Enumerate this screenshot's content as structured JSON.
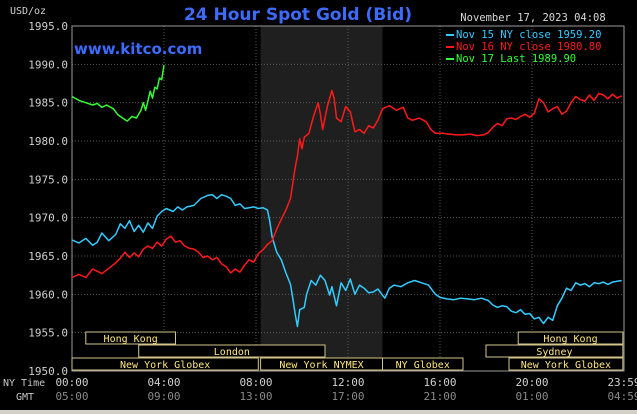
{
  "header": {
    "title": "24 Hour Spot Gold (Bid)",
    "unit": "USD/oz",
    "timestamp": "November 17, 2023 04:08",
    "watermark": "www.kitco.com"
  },
  "legend": [
    {
      "name": "Nov 15 NY close 1959.20",
      "color": "#33ccff"
    },
    {
      "name": "Nov 16 NY close 1980.80",
      "color": "#ff1a1a"
    },
    {
      "name": "Nov 17 Last 1989.90",
      "color": "#33ff33"
    }
  ],
  "time_axis": {
    "ny_label": "NY Time",
    "gmt_label": "GMT",
    "ny_ticks": [
      "00:00",
      "04:00",
      "08:00",
      "12:00",
      "16:00",
      "20:00",
      "23:59"
    ],
    "gmt_ticks": [
      "05:00",
      "09:00",
      "13:00",
      "17:00",
      "21:00",
      "01:00",
      "04:59"
    ]
  },
  "sessions": [
    {
      "name": "Hong Kong",
      "row": 0,
      "start": 0.6,
      "end": 4.5
    },
    {
      "name": "Hong Kong",
      "row": 0,
      "start": 19.4,
      "end": 23.95
    },
    {
      "name": "London",
      "row": 1,
      "start": 2.9,
      "end": 11.0
    },
    {
      "name": "Sydney",
      "row": 1,
      "start": 18.0,
      "end": 23.95
    },
    {
      "name": "New York Globex",
      "row": 2,
      "start": 0.0,
      "end": 8.1
    },
    {
      "name": "New York NYMEX",
      "row": 2,
      "start": 8.2,
      "end": 13.5
    },
    {
      "name": "NY Globex",
      "row": 2,
      "start": 13.5,
      "end": 17.0
    },
    {
      "name": "New York Globex",
      "row": 2,
      "start": 19.0,
      "end": 23.95
    }
  ],
  "chart_data": {
    "type": "line",
    "title": "24 Hour Spot Gold (Bid)",
    "ylabel": "USD/oz",
    "xlabel": "NY Time",
    "ylim": [
      1950,
      1995
    ],
    "yticks": [
      1950,
      1955,
      1960,
      1965,
      1970,
      1975,
      1980,
      1985,
      1990,
      1995
    ],
    "ytick_labels": [
      "1950.0",
      "1955.0",
      "1960.0",
      "1965.0",
      "1970.0",
      "1975.0",
      "1980.0",
      "1985.0",
      "1990.0",
      "1995.0"
    ],
    "xlim": [
      0,
      24
    ],
    "xticks": [
      0,
      4,
      8,
      12,
      16,
      20,
      24
    ],
    "shaded_region": [
      8.2,
      13.5
    ],
    "series": [
      {
        "name": "Nov 15 NY close 1959.20",
        "color": "#33ccff",
        "points": [
          [
            0,
            1967.1
          ],
          [
            0.3,
            1966.7
          ],
          [
            0.6,
            1967.3
          ],
          [
            0.9,
            1966.4
          ],
          [
            1.1,
            1966.8
          ],
          [
            1.3,
            1968.0
          ],
          [
            1.6,
            1967.0
          ],
          [
            1.9,
            1967.8
          ],
          [
            2.1,
            1969.2
          ],
          [
            2.3,
            1968.6
          ],
          [
            2.5,
            1969.6
          ],
          [
            2.7,
            1968.2
          ],
          [
            2.9,
            1969.0
          ],
          [
            3.1,
            1968.1
          ],
          [
            3.3,
            1969.3
          ],
          [
            3.5,
            1968.6
          ],
          [
            3.7,
            1970.2
          ],
          [
            3.9,
            1970.8
          ],
          [
            4.1,
            1971.2
          ],
          [
            4.4,
            1970.8
          ],
          [
            4.6,
            1971.4
          ],
          [
            4.8,
            1971.0
          ],
          [
            5.0,
            1971.4
          ],
          [
            5.3,
            1971.6
          ],
          [
            5.6,
            1972.5
          ],
          [
            5.9,
            1972.9
          ],
          [
            6.1,
            1973.0
          ],
          [
            6.3,
            1972.5
          ],
          [
            6.5,
            1973.0
          ],
          [
            6.7,
            1972.8
          ],
          [
            6.9,
            1972.5
          ],
          [
            7.1,
            1971.6
          ],
          [
            7.3,
            1971.8
          ],
          [
            7.5,
            1971.2
          ],
          [
            7.7,
            1971.3
          ],
          [
            7.9,
            1971.4
          ],
          [
            8.1,
            1971.2
          ],
          [
            8.3,
            1971.3
          ],
          [
            8.5,
            1971.0
          ],
          [
            8.6,
            1969.5
          ],
          [
            8.7,
            1967.5
          ],
          [
            8.8,
            1966.5
          ],
          [
            8.9,
            1965.5
          ],
          [
            9.1,
            1964.5
          ],
          [
            9.3,
            1962.8
          ],
          [
            9.5,
            1961.3
          ],
          [
            9.6,
            1959.5
          ],
          [
            9.7,
            1957.5
          ],
          [
            9.8,
            1955.8
          ],
          [
            9.9,
            1958.0
          ],
          [
            10.1,
            1958.3
          ],
          [
            10.2,
            1960.0
          ],
          [
            10.4,
            1961.8
          ],
          [
            10.6,
            1961.2
          ],
          [
            10.8,
            1962.5
          ],
          [
            11.0,
            1961.8
          ],
          [
            11.2,
            1959.9
          ],
          [
            11.3,
            1961.0
          ],
          [
            11.5,
            1958.5
          ],
          [
            11.7,
            1961.5
          ],
          [
            11.9,
            1960.5
          ],
          [
            12.1,
            1962.0
          ],
          [
            12.3,
            1960.0
          ],
          [
            12.5,
            1961.2
          ],
          [
            12.7,
            1960.8
          ],
          [
            12.9,
            1960.2
          ],
          [
            13.1,
            1960.3
          ],
          [
            13.3,
            1960.7
          ],
          [
            13.6,
            1959.5
          ],
          [
            13.8,
            1960.8
          ],
          [
            14.0,
            1961.2
          ],
          [
            14.3,
            1961.0
          ],
          [
            14.6,
            1961.5
          ],
          [
            14.9,
            1961.8
          ],
          [
            15.2,
            1961.5
          ],
          [
            15.5,
            1961.2
          ],
          [
            15.8,
            1960.0
          ],
          [
            16.0,
            1959.6
          ],
          [
            16.3,
            1959.4
          ],
          [
            16.6,
            1959.3
          ],
          [
            16.9,
            1959.5
          ],
          [
            17.2,
            1959.4
          ],
          [
            17.5,
            1959.3
          ],
          [
            17.8,
            1959.5
          ],
          [
            18.1,
            1959.2
          ],
          [
            18.3,
            1958.6
          ],
          [
            18.5,
            1958.3
          ],
          [
            18.7,
            1958.5
          ],
          [
            18.9,
            1958.4
          ],
          [
            19.1,
            1957.8
          ],
          [
            19.3,
            1957.6
          ],
          [
            19.5,
            1958.0
          ],
          [
            19.7,
            1957.4
          ],
          [
            19.9,
            1957.5
          ],
          [
            20.1,
            1956.8
          ],
          [
            20.3,
            1957.0
          ],
          [
            20.5,
            1956.2
          ],
          [
            20.7,
            1957.0
          ],
          [
            20.9,
            1956.6
          ],
          [
            21.1,
            1958.5
          ],
          [
            21.3,
            1959.5
          ],
          [
            21.5,
            1960.8
          ],
          [
            21.7,
            1960.5
          ],
          [
            21.9,
            1961.5
          ],
          [
            22.1,
            1961.2
          ],
          [
            22.3,
            1961.4
          ],
          [
            22.5,
            1961.0
          ],
          [
            22.7,
            1961.5
          ],
          [
            22.9,
            1961.4
          ],
          [
            23.1,
            1961.6
          ],
          [
            23.3,
            1961.3
          ],
          [
            23.5,
            1961.6
          ],
          [
            23.7,
            1961.7
          ],
          [
            23.9,
            1961.8
          ]
        ]
      },
      {
        "name": "Nov 16 NY close 1980.80",
        "color": "#ff1a1a",
        "points": [
          [
            0,
            1962.2
          ],
          [
            0.3,
            1962.6
          ],
          [
            0.6,
            1962.2
          ],
          [
            0.9,
            1963.3
          ],
          [
            1.1,
            1963.0
          ],
          [
            1.3,
            1962.7
          ],
          [
            1.6,
            1963.4
          ],
          [
            1.9,
            1964.1
          ],
          [
            2.1,
            1964.7
          ],
          [
            2.3,
            1965.5
          ],
          [
            2.5,
            1964.8
          ],
          [
            2.7,
            1965.4
          ],
          [
            2.9,
            1964.9
          ],
          [
            3.1,
            1965.9
          ],
          [
            3.3,
            1966.3
          ],
          [
            3.5,
            1966.0
          ],
          [
            3.7,
            1966.8
          ],
          [
            3.9,
            1966.3
          ],
          [
            4.1,
            1967.2
          ],
          [
            4.3,
            1967.6
          ],
          [
            4.5,
            1966.8
          ],
          [
            4.7,
            1967.0
          ],
          [
            4.9,
            1966.3
          ],
          [
            5.1,
            1966.0
          ],
          [
            5.3,
            1965.9
          ],
          [
            5.5,
            1965.5
          ],
          [
            5.7,
            1964.8
          ],
          [
            5.9,
            1965.0
          ],
          [
            6.1,
            1964.5
          ],
          [
            6.3,
            1964.8
          ],
          [
            6.5,
            1964.0
          ],
          [
            6.7,
            1963.6
          ],
          [
            6.9,
            1962.8
          ],
          [
            7.1,
            1963.3
          ],
          [
            7.3,
            1962.9
          ],
          [
            7.5,
            1963.8
          ],
          [
            7.7,
            1964.5
          ],
          [
            7.9,
            1964.2
          ],
          [
            8.1,
            1965.3
          ],
          [
            8.3,
            1965.8
          ],
          [
            8.5,
            1966.5
          ],
          [
            8.7,
            1967.0
          ],
          [
            8.9,
            1968.5
          ],
          [
            9.1,
            1969.8
          ],
          [
            9.3,
            1971.0
          ],
          [
            9.5,
            1972.5
          ],
          [
            9.6,
            1974.5
          ],
          [
            9.7,
            1976.5
          ],
          [
            9.8,
            1978.0
          ],
          [
            9.9,
            1980.3
          ],
          [
            10.0,
            1979.0
          ],
          [
            10.1,
            1980.5
          ],
          [
            10.3,
            1981.0
          ],
          [
            10.5,
            1983.2
          ],
          [
            10.7,
            1985.0
          ],
          [
            10.8,
            1983.5
          ],
          [
            10.9,
            1981.5
          ],
          [
            11.1,
            1984.5
          ],
          [
            11.3,
            1986.6
          ],
          [
            11.4,
            1985.5
          ],
          [
            11.5,
            1983.0
          ],
          [
            11.7,
            1982.5
          ],
          [
            11.9,
            1984.5
          ],
          [
            12.1,
            1983.8
          ],
          [
            12.3,
            1981.2
          ],
          [
            12.5,
            1981.5
          ],
          [
            12.7,
            1981.0
          ],
          [
            12.9,
            1982.0
          ],
          [
            13.1,
            1981.7
          ],
          [
            13.3,
            1982.7
          ],
          [
            13.5,
            1984.2
          ],
          [
            13.8,
            1984.6
          ],
          [
            14.1,
            1984.0
          ],
          [
            14.4,
            1984.4
          ],
          [
            14.6,
            1983.0
          ],
          [
            14.8,
            1982.7
          ],
          [
            15.1,
            1983.0
          ],
          [
            15.4,
            1982.5
          ],
          [
            15.6,
            1981.5
          ],
          [
            15.8,
            1981.0
          ],
          [
            16.1,
            1981.0
          ],
          [
            16.4,
            1980.9
          ],
          [
            16.7,
            1980.8
          ],
          [
            17.0,
            1980.8
          ],
          [
            17.3,
            1980.9
          ],
          [
            17.6,
            1980.7
          ],
          [
            17.9,
            1980.8
          ],
          [
            18.1,
            1981.1
          ],
          [
            18.3,
            1981.8
          ],
          [
            18.5,
            1982.3
          ],
          [
            18.7,
            1982.0
          ],
          [
            18.9,
            1982.9
          ],
          [
            19.1,
            1983.0
          ],
          [
            19.3,
            1982.8
          ],
          [
            19.5,
            1983.2
          ],
          [
            19.7,
            1983.5
          ],
          [
            19.9,
            1983.1
          ],
          [
            20.1,
            1983.6
          ],
          [
            20.3,
            1985.5
          ],
          [
            20.5,
            1985.0
          ],
          [
            20.7,
            1983.8
          ],
          [
            20.9,
            1984.2
          ],
          [
            21.1,
            1984.5
          ],
          [
            21.3,
            1983.5
          ],
          [
            21.5,
            1983.9
          ],
          [
            21.7,
            1985.0
          ],
          [
            21.9,
            1985.8
          ],
          [
            22.1,
            1985.4
          ],
          [
            22.3,
            1985.2
          ],
          [
            22.5,
            1986.0
          ],
          [
            22.7,
            1985.3
          ],
          [
            22.9,
            1986.2
          ],
          [
            23.1,
            1986.0
          ],
          [
            23.3,
            1985.5
          ],
          [
            23.5,
            1986.1
          ],
          [
            23.7,
            1985.6
          ],
          [
            23.9,
            1985.9
          ]
        ]
      },
      {
        "name": "Nov 17 Last 1989.90",
        "color": "#33ff33",
        "points": [
          [
            0,
            1985.8
          ],
          [
            0.3,
            1985.3
          ],
          [
            0.6,
            1985.0
          ],
          [
            0.9,
            1984.7
          ],
          [
            1.1,
            1984.9
          ],
          [
            1.3,
            1984.4
          ],
          [
            1.5,
            1984.7
          ],
          [
            1.8,
            1984.2
          ],
          [
            2.0,
            1983.4
          ],
          [
            2.2,
            1983.0
          ],
          [
            2.4,
            1982.6
          ],
          [
            2.6,
            1983.2
          ],
          [
            2.8,
            1983.0
          ],
          [
            3.0,
            1984.0
          ],
          [
            3.1,
            1985.0
          ],
          [
            3.2,
            1984.0
          ],
          [
            3.3,
            1985.2
          ],
          [
            3.4,
            1986.5
          ],
          [
            3.5,
            1985.6
          ],
          [
            3.6,
            1987.0
          ],
          [
            3.7,
            1986.8
          ],
          [
            3.8,
            1988.2
          ],
          [
            3.9,
            1988.0
          ],
          [
            4.0,
            1989.9
          ]
        ]
      }
    ]
  }
}
